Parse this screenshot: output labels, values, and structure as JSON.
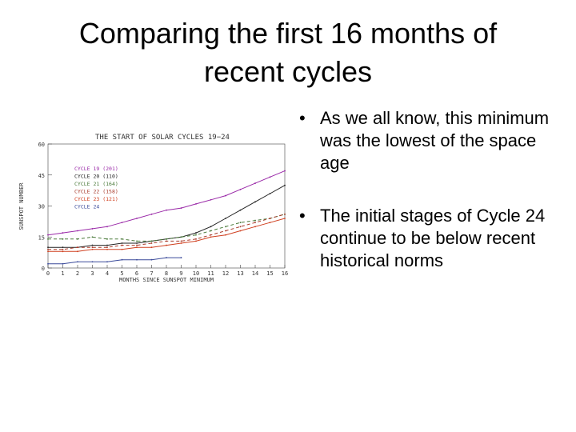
{
  "slide": {
    "title_lines": [
      "Comparing the first 16 months of",
      "recent cycles"
    ],
    "bullets": [
      "As we all know, this minimum was the lowest of the space age",
      "The initial stages of Cycle 24 continue to be below recent historical norms"
    ],
    "bullet_glyph": "•"
  },
  "chart_data": {
    "type": "line",
    "title": "THE START OF SOLAR CYCLES 19−24",
    "xlabel": "MONTHS SINCE SUNSPOT MINIMUM",
    "ylabel": "SUNSPOT NUMBER",
    "x": [
      0,
      1,
      2,
      3,
      4,
      5,
      6,
      7,
      8,
      9,
      10,
      11,
      12,
      13,
      14,
      15,
      16
    ],
    "xticks": [
      "0",
      "1",
      "2",
      "3",
      "4",
      "5",
      "6",
      "7",
      "8",
      "9",
      "10",
      "11",
      "12",
      "13",
      "14",
      "15",
      "16"
    ],
    "ylim": [
      0,
      60
    ],
    "yticks": [
      "0",
      "15",
      "30",
      "45",
      "60"
    ],
    "legend": {
      "placement": "top-left",
      "entries": [
        "CYCLE 19 (201)",
        "CYCLE 20 (110)",
        "CYCLE 21 (164)",
        "CYCLE 22 (158)",
        "CYCLE 23 (121)",
        "CYCLE 24"
      ]
    },
    "series": [
      {
        "name": "CYCLE 19 (201)",
        "color": "#9a2aa8",
        "style": "solid",
        "values": [
          16,
          17,
          18,
          19,
          20,
          22,
          24,
          26,
          28,
          29,
          31,
          33,
          35,
          38,
          41,
          44,
          47
        ]
      },
      {
        "name": "CYCLE 20 (110)",
        "color": "#222222",
        "style": "solid",
        "values": [
          10,
          10,
          10,
          11,
          11,
          12,
          12,
          13,
          14,
          15,
          17,
          20,
          24,
          28,
          32,
          36,
          40
        ]
      },
      {
        "name": "CYCLE 21 (164)",
        "color": "#4a7a3a",
        "style": "dashed",
        "values": [
          14,
          14,
          14,
          15,
          14,
          14,
          13,
          13,
          14,
          15,
          16,
          18,
          20,
          22,
          23,
          24,
          26
        ]
      },
      {
        "name": "CYCLE 22 (158)",
        "color": "#a83a2a",
        "style": "dashed",
        "values": [
          9,
          9,
          10,
          10,
          10,
          11,
          11,
          12,
          13,
          13,
          14,
          16,
          18,
          20,
          22,
          24,
          26
        ]
      },
      {
        "name": "CYCLE 23 (121)",
        "color": "#d04020",
        "style": "solid",
        "values": [
          8,
          8,
          8,
          9,
          9,
          9,
          10,
          10,
          11,
          12,
          13,
          15,
          16,
          18,
          20,
          22,
          24
        ]
      },
      {
        "name": "CYCLE 24",
        "color": "#3a4a9a",
        "style": "solid",
        "values": [
          2,
          2,
          3,
          3,
          3,
          4,
          4,
          4,
          5,
          5,
          null,
          null,
          null,
          null,
          null,
          null,
          null
        ]
      }
    ]
  }
}
